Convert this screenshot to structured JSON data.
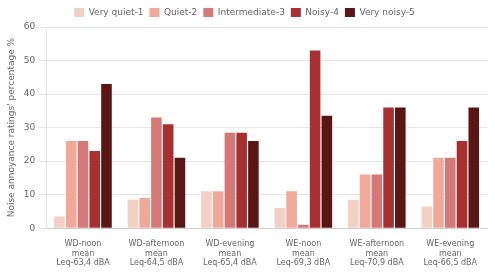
{
  "chart_data": {
    "type": "bar",
    "categories": [
      "WD-noon\nmean\nLeq-63,4 dBA",
      "WD-afternoon\nmean\nLeq-64,5 dBA",
      "WD-evening\nmean\nLeq-65,4 dBA",
      "WE-noon\nmean\nLeq-69,3 dBA",
      "WE-afternoon\nmean\nLeq-70,9 dBA",
      "WE-evening\nmean\nLeq-66,5 dBA"
    ],
    "series": [
      {
        "name": "Very quiet-1",
        "color": "#f2d0c4",
        "values": [
          3.5,
          8.5,
          11,
          6,
          8.5,
          6.5
        ]
      },
      {
        "name": "Quiet-2",
        "color": "#f0a898",
        "values": [
          26,
          9,
          11,
          11,
          16,
          21
        ]
      },
      {
        "name": "Intermediate-3",
        "color": "#d47878",
        "values": [
          26,
          33,
          28.5,
          1,
          16,
          21
        ]
      },
      {
        "name": "Noisy-4",
        "color": "#a83030",
        "values": [
          23,
          31,
          28.5,
          53,
          36,
          26
        ]
      },
      {
        "name": "Very noisy-5",
        "color": "#5a1515",
        "values": [
          43,
          21,
          26,
          33.5,
          36,
          36
        ]
      }
    ],
    "ylabel": "Noise annoyance ratings' percentage %",
    "ylim": [
      0,
      60
    ],
    "yticks": [
      0,
      10,
      20,
      30,
      40,
      50,
      60
    ],
    "grid": true,
    "legend": "top"
  }
}
